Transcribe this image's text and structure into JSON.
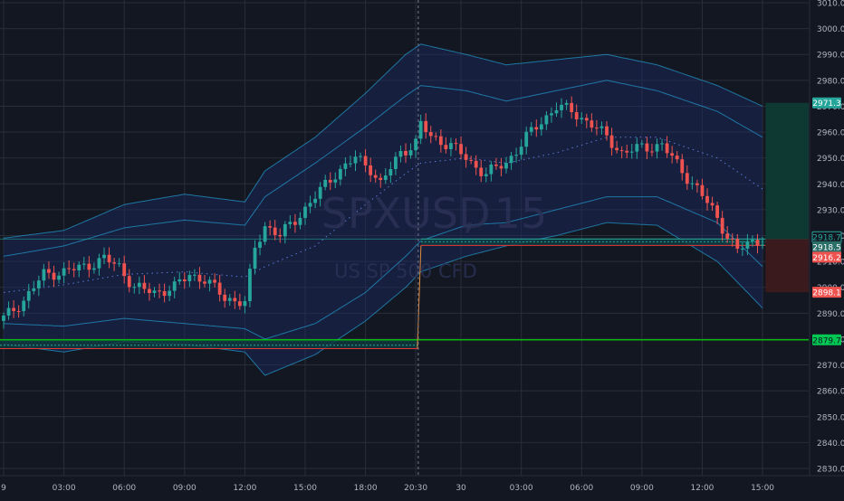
{
  "symbol": {
    "ticker": "SPXUSD",
    "interval": "15",
    "description": "US SP 500 CFD"
  },
  "colors": {
    "background": "#131722",
    "grid": "#2a2e39",
    "axis_text": "#b2b5be",
    "candle_up": "#26a69a",
    "candle_down": "#ef5350",
    "band_fill": "#1c2a63",
    "band_line": "#2196c8",
    "target_fill": "#0e3b34",
    "stop_fill": "#3d1a1e",
    "support_line": "#00e600",
    "stop_line": "#e53935",
    "price_line": "#26a69a",
    "dashed_center": "#5a7bd6"
  },
  "chart_data": {
    "type": "candlestick",
    "ylim": [
      2822,
      3012
    ],
    "y_ticks": [
      2830,
      2840,
      2850,
      2860,
      2870,
      2880,
      2890,
      2900,
      2910,
      2920,
      2930,
      2940,
      2950,
      2960,
      2970,
      2980,
      2990,
      3000,
      3010
    ],
    "y_tick_labels": [
      "2830.0",
      "2840.0",
      "2850.0",
      "2860.0",
      "2870.0",
      "2880.0",
      "2890.0",
      "2900.0",
      "2910.0",
      "2920.0",
      "2930.0",
      "2940.0",
      "2950.0",
      "2960.0",
      "2970.0",
      "2980.0",
      "2990.0",
      "3000.0",
      "3010.0"
    ],
    "x_labels": [
      {
        "bar": 0,
        "text": "9"
      },
      {
        "bar": 12,
        "text": "03:00"
      },
      {
        "bar": 24,
        "text": "06:00"
      },
      {
        "bar": 36,
        "text": "09:00"
      },
      {
        "bar": 48,
        "text": "12:00"
      },
      {
        "bar": 60,
        "text": "15:00"
      },
      {
        "bar": 72,
        "text": "18:00"
      },
      {
        "bar": 82,
        "text": "20:30"
      },
      {
        "bar": 91,
        "text": "30"
      },
      {
        "bar": 103,
        "text": "03:00"
      },
      {
        "bar": 115,
        "text": "06:00"
      },
      {
        "bar": 127,
        "text": "09:00"
      },
      {
        "bar": 139,
        "text": "12:00"
      },
      {
        "bar": 151,
        "text": "15:00"
      }
    ],
    "session_divider_bar": 82.5,
    "close_waypoints": [
      [
        0,
        2888
      ],
      [
        4,
        2895
      ],
      [
        8,
        2905
      ],
      [
        12,
        2906
      ],
      [
        16,
        2908
      ],
      [
        20,
        2911
      ],
      [
        23,
        2908
      ],
      [
        26,
        2900
      ],
      [
        30,
        2898
      ],
      [
        34,
        2900
      ],
      [
        37,
        2905
      ],
      [
        40,
        2903
      ],
      [
        44,
        2896
      ],
      [
        48,
        2894
      ],
      [
        50,
        2915
      ],
      [
        52,
        2924
      ],
      [
        55,
        2920
      ],
      [
        58,
        2926
      ],
      [
        62,
        2935
      ],
      [
        66,
        2944
      ],
      [
        70,
        2950
      ],
      [
        73,
        2946
      ],
      [
        75,
        2940
      ],
      [
        79,
        2952
      ],
      [
        82,
        2956
      ],
      [
        83,
        2963
      ],
      [
        85,
        2958
      ],
      [
        89,
        2955
      ],
      [
        93,
        2948
      ],
      [
        96,
        2944
      ],
      [
        100,
        2948
      ],
      [
        104,
        2958
      ],
      [
        108,
        2966
      ],
      [
        110,
        2970
      ],
      [
        113,
        2968
      ],
      [
        117,
        2963
      ],
      [
        120,
        2958
      ],
      [
        123,
        2952
      ],
      [
        127,
        2954
      ],
      [
        131,
        2955
      ],
      [
        135,
        2945
      ],
      [
        138,
        2938
      ],
      [
        141,
        2930
      ],
      [
        144,
        2920
      ],
      [
        146,
        2914
      ],
      [
        148,
        2917
      ],
      [
        150,
        2918
      ],
      [
        151,
        2918.5
      ]
    ],
    "bands": {
      "upper_outer": [
        [
          0,
          2919
        ],
        [
          12,
          2922
        ],
        [
          24,
          2932
        ],
        [
          36,
          2936
        ],
        [
          48,
          2933
        ],
        [
          52,
          2945
        ],
        [
          62,
          2958
        ],
        [
          72,
          2975
        ],
        [
          80,
          2990
        ],
        [
          83,
          2994
        ],
        [
          92,
          2990
        ],
        [
          100,
          2986
        ],
        [
          110,
          2988
        ],
        [
          120,
          2990
        ],
        [
          130,
          2986
        ],
        [
          142,
          2978
        ],
        [
          151,
          2970
        ]
      ],
      "upper_inner": [
        [
          0,
          2912
        ],
        [
          12,
          2916
        ],
        [
          24,
          2923
        ],
        [
          36,
          2926
        ],
        [
          48,
          2924
        ],
        [
          52,
          2935
        ],
        [
          62,
          2948
        ],
        [
          72,
          2962
        ],
        [
          80,
          2974
        ],
        [
          83,
          2978
        ],
        [
          92,
          2976
        ],
        [
          100,
          2972
        ],
        [
          110,
          2976
        ],
        [
          120,
          2980
        ],
        [
          130,
          2976
        ],
        [
          142,
          2968
        ],
        [
          151,
          2958
        ]
      ],
      "center": [
        [
          0,
          2898
        ],
        [
          12,
          2901
        ],
        [
          24,
          2905
        ],
        [
          36,
          2906
        ],
        [
          48,
          2904
        ],
        [
          52,
          2908
        ],
        [
          62,
          2916
        ],
        [
          72,
          2932
        ],
        [
          80,
          2944
        ],
        [
          83,
          2948
        ],
        [
          92,
          2950
        ],
        [
          100,
          2948
        ],
        [
          110,
          2952
        ],
        [
          120,
          2958
        ],
        [
          130,
          2958
        ],
        [
          142,
          2950
        ],
        [
          151,
          2938
        ]
      ],
      "lower_inner": [
        [
          0,
          2886
        ],
        [
          12,
          2885
        ],
        [
          24,
          2888
        ],
        [
          36,
          2886
        ],
        [
          48,
          2884
        ],
        [
          52,
          2880
        ],
        [
          62,
          2886
        ],
        [
          72,
          2898
        ],
        [
          80,
          2912
        ],
        [
          83,
          2918
        ],
        [
          92,
          2924
        ],
        [
          100,
          2925
        ],
        [
          110,
          2930
        ],
        [
          120,
          2935
        ],
        [
          130,
          2935
        ],
        [
          142,
          2925
        ],
        [
          151,
          2908
        ]
      ],
      "lower_outer": [
        [
          0,
          2878
        ],
        [
          12,
          2875
        ],
        [
          24,
          2879
        ],
        [
          36,
          2878
        ],
        [
          48,
          2875
        ],
        [
          52,
          2866
        ],
        [
          62,
          2874
        ],
        [
          72,
          2887
        ],
        [
          80,
          2900
        ],
        [
          83,
          2906
        ],
        [
          92,
          2912
        ],
        [
          100,
          2916
        ],
        [
          110,
          2920
        ],
        [
          120,
          2925
        ],
        [
          130,
          2924
        ],
        [
          142,
          2910
        ],
        [
          151,
          2892
        ]
      ]
    },
    "pre_level": 2879.7,
    "post_level": 2918.7,
    "stop_level": 2916.2,
    "price_labels": [
      {
        "text": "2971.3",
        "value": 2971.3,
        "kind": "target"
      },
      {
        "text": "2918.7",
        "value": 2918.7,
        "kind": "line"
      },
      {
        "text": "2918.5",
        "value": 2918.5,
        "kind": "last"
      },
      {
        "text": "2916.2",
        "value": 2916.2,
        "kind": "stop"
      },
      {
        "text": "2898.1",
        "value": 2898.1,
        "kind": "stop_zone"
      },
      {
        "text": "2879.7",
        "value": 2879.7,
        "kind": "support"
      }
    ],
    "position_box": {
      "from_bar": 151.6,
      "target": 2971.3,
      "entry": 2918.7,
      "stop": 2898.1
    }
  }
}
